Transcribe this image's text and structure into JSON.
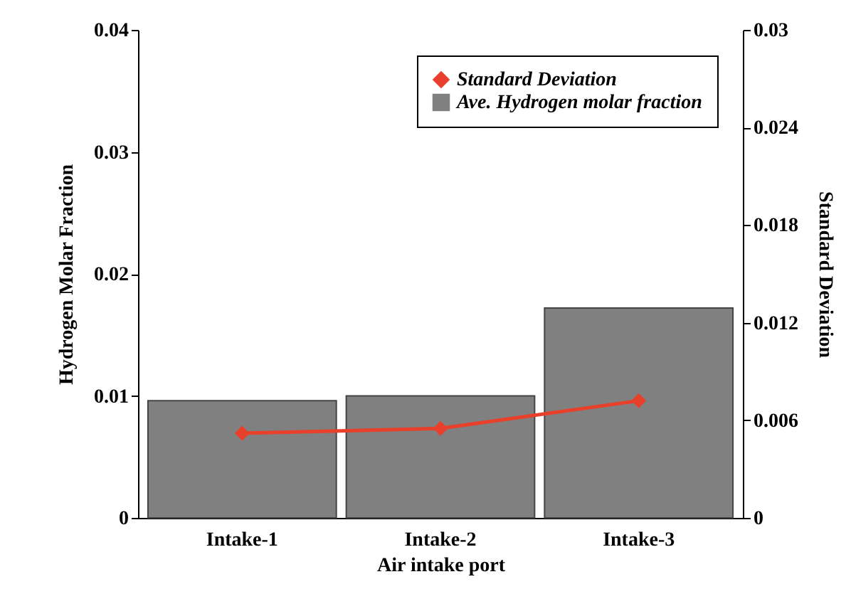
{
  "chart_data": {
    "type": "bar",
    "xlabel": "Air intake port",
    "ylabel": "Hydrogen Molar Fraction",
    "y2label": "Standard Deviation",
    "categories": [
      "Intake-1",
      "Intake-2",
      "Intake-3"
    ],
    "series": [
      {
        "name": "Standard Deviation",
        "type": "line",
        "axis": "y2",
        "color": "#e8402a",
        "marker": "diamond",
        "values": [
          0.0052,
          0.0055,
          0.0072
        ]
      },
      {
        "name": "Ave. Hydrogen molar fraction",
        "color": "#808080",
        "values": [
          0.0096,
          0.01,
          0.0172
        ]
      }
    ],
    "ylim": [
      0,
      0.04
    ],
    "yticks": [
      0,
      0.01,
      0.02,
      0.03,
      0.04
    ],
    "y2lim": [
      0,
      0.03
    ],
    "y2ticks": [
      0,
      0.006,
      0.012,
      0.018,
      0.024,
      0.03
    ],
    "legend": "top right"
  }
}
